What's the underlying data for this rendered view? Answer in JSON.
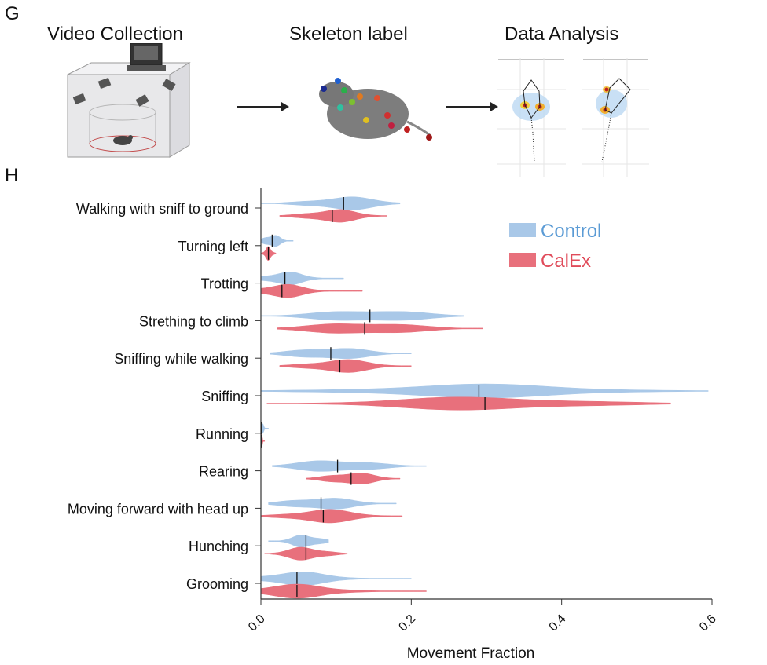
{
  "panel_g": {
    "letter": "G",
    "steps": [
      {
        "title": "Video Collection"
      },
      {
        "title": "Skeleton label"
      },
      {
        "title": "Data Analysis"
      }
    ]
  },
  "panel_h": {
    "letter": "H"
  },
  "colors": {
    "control": "#5b9bd5",
    "calex": "#e04b5a",
    "control_fill": "#a9c8e8",
    "calex_fill": "#e8707c"
  },
  "chart_data": {
    "type": "violin",
    "orientation": "horizontal",
    "xlabel": "Movement Fraction",
    "ylabel": "",
    "xlim": [
      0.0,
      0.6
    ],
    "xticks": [
      "0.0",
      "0.2",
      "0.4",
      "0.6"
    ],
    "legend": {
      "placement": "top-right",
      "entries": [
        {
          "name": "Control",
          "color": "#5b9bd5"
        },
        {
          "name": "CalEx",
          "color": "#e04b5a"
        }
      ]
    },
    "categories": [
      "Walking with sniff to ground",
      "Turning left",
      "Trotting",
      "Strething to climb",
      "Sniffing while walking",
      "Sniffing",
      "Running",
      "Rearing",
      "Moving forward with head up",
      "Hunching",
      "Grooming"
    ],
    "series": [
      {
        "name": "Control",
        "medians": [
          0.11,
          0.015,
          0.032,
          0.145,
          0.093,
          0.29,
          0.001,
          0.102,
          0.08,
          0.06,
          0.048
        ],
        "ranges": [
          [
            0.0,
            0.185
          ],
          [
            0.0,
            0.043
          ],
          [
            0.0,
            0.11
          ],
          [
            0.0,
            0.27
          ],
          [
            0.012,
            0.2
          ],
          [
            0.0,
            0.595
          ],
          [
            0.0,
            0.01
          ],
          [
            0.015,
            0.22
          ],
          [
            0.01,
            0.18
          ],
          [
            0.01,
            0.09
          ],
          [
            0.0,
            0.2
          ]
        ]
      },
      {
        "name": "CalEx",
        "medians": [
          0.095,
          0.01,
          0.028,
          0.138,
          0.105,
          0.298,
          0.001,
          0.12,
          0.083,
          0.06,
          0.048
        ],
        "ranges": [
          [
            0.025,
            0.168
          ],
          [
            0.0,
            0.02
          ],
          [
            0.0,
            0.135
          ],
          [
            0.022,
            0.295
          ],
          [
            0.025,
            0.2
          ],
          [
            0.008,
            0.545
          ],
          [
            0.0,
            0.005
          ],
          [
            0.06,
            0.185
          ],
          [
            0.0,
            0.188
          ],
          [
            0.005,
            0.115
          ],
          [
            0.0,
            0.22
          ]
        ]
      }
    ]
  }
}
